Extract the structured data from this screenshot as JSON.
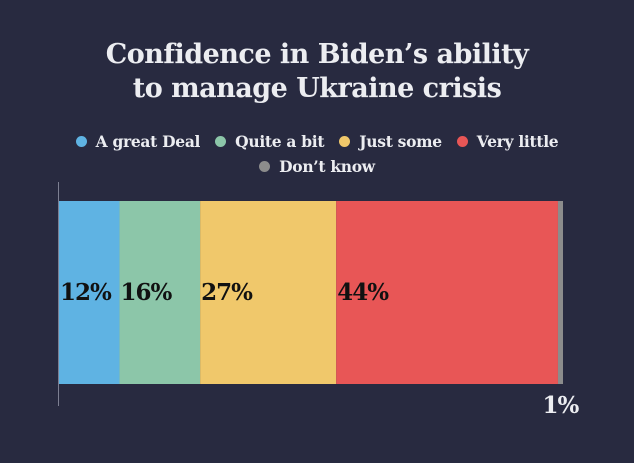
{
  "header": {
    "title_line_1": "Confidence in Biden’s ability",
    "title_line_2": "to manage Ukraine crisis"
  },
  "legend": {
    "row1": [
      {
        "label": "A great Deal",
        "color": "#5fb3e3"
      },
      {
        "label": "Quite a bit",
        "color": "#8cc6a9"
      },
      {
        "label": "Just some",
        "color": "#f0c86b"
      },
      {
        "label": "Very little",
        "color": "#e85656"
      }
    ],
    "row2": [
      {
        "label": "Don’t know",
        "color": "#8c8c8c"
      }
    ]
  },
  "chart_data": {
    "type": "bar",
    "orientation": "horizontal-stacked",
    "title": "Confidence in Biden’s ability to manage Ukraine crisis",
    "categories": [
      "A great Deal",
      "Quite a bit",
      "Just some",
      "Very little",
      "Don’t know"
    ],
    "values": [
      12,
      16,
      27,
      44,
      1
    ],
    "labels": [
      "12%",
      "16%",
      "27%",
      "44%",
      "1%"
    ],
    "colors": [
      "#5fb3e3",
      "#8cc6a9",
      "#f0c86b",
      "#e85656",
      "#8c8c8c"
    ],
    "unit": "%",
    "xlim": [
      0,
      100
    ],
    "grid": false,
    "legend_position": "top-center"
  }
}
